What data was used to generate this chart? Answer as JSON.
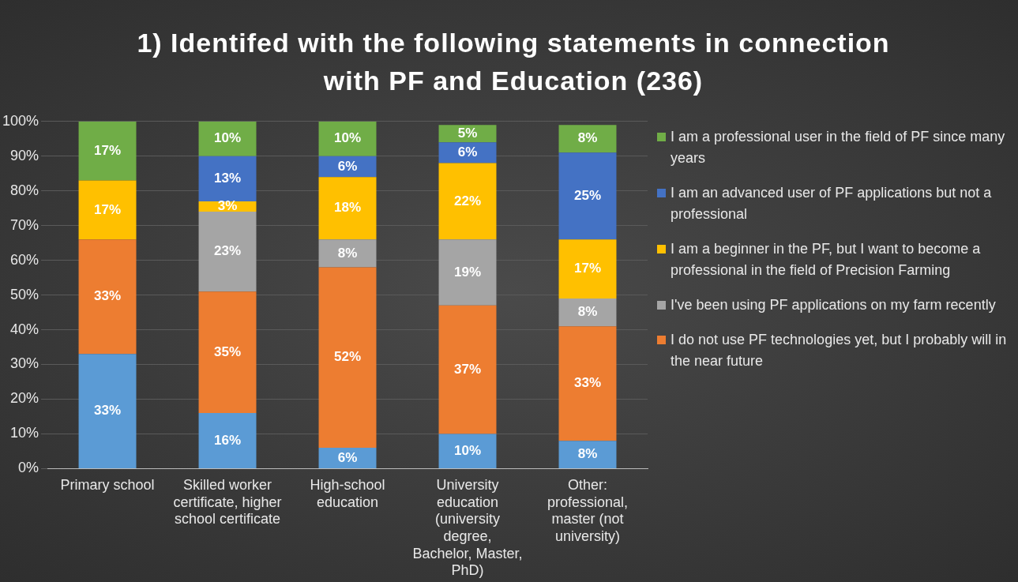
{
  "chart_data": {
    "type": "bar",
    "title": "1) Identifed with the following statements in connection with PF and Education (236)",
    "categories": [
      "Primary school",
      "Skilled worker certificate, higher school certificate",
      "High-school education",
      "University education (university degree, Bachelor, Master, PhD)",
      "Other: professional, master (not university)"
    ],
    "stacked": true,
    "ylim": [
      0,
      100
    ],
    "yticks": [
      {
        "value": 0,
        "label": "0%"
      },
      {
        "value": 10,
        "label": "10%"
      },
      {
        "value": 20,
        "label": "20%"
      },
      {
        "value": 30,
        "label": "30%"
      },
      {
        "value": 40,
        "label": "40%"
      },
      {
        "value": 50,
        "label": "50%"
      },
      {
        "value": 60,
        "label": "60%"
      },
      {
        "value": 70,
        "label": "70%"
      },
      {
        "value": 80,
        "label": "80%"
      },
      {
        "value": 90,
        "label": "90%"
      },
      {
        "value": 100,
        "label": "100%"
      }
    ],
    "grid": "y",
    "legend": "right",
    "series": [
      {
        "color": "#5b9bd5",
        "values": [
          33,
          16,
          6,
          10,
          8
        ],
        "value_labels": [
          "33%",
          "16%",
          "6%",
          "10%",
          "8%"
        ]
      },
      {
        "name": "I do not use PF technologies yet, but I probably will in the near future",
        "color": "#ed7d31",
        "values": [
          33,
          35,
          52,
          37,
          33
        ],
        "value_labels": [
          "33%",
          "35%",
          "52%",
          "37%",
          "33%"
        ]
      },
      {
        "name": "I've been using PF applications on my farm recently",
        "color": "#a5a5a5",
        "values": [
          null,
          23,
          8,
          19,
          8
        ],
        "value_labels": [
          null,
          "23%",
          "8%",
          "19%",
          "8%"
        ]
      },
      {
        "name": "I am a beginner in the PF, but I want to become a professional in the field of Precision Farming",
        "color": "#ffc000",
        "values": [
          17,
          3,
          18,
          22,
          17
        ],
        "value_labels": [
          "17%",
          "3%",
          "18%",
          "22%",
          "17%"
        ]
      },
      {
        "name": "I am an advanced user of PF applications but not a professional",
        "color": "#4472c4",
        "values": [
          null,
          13,
          6,
          6,
          25
        ],
        "value_labels": [
          null,
          "13%",
          "6%",
          "6%",
          "25%"
        ]
      },
      {
        "name": "I am a professional user in the field of PF since many years",
        "color": "#70ad47",
        "values": [
          17,
          10,
          10,
          5,
          8
        ],
        "value_labels": [
          "17%",
          "10%",
          "10%",
          "5%",
          "8%"
        ]
      }
    ]
  }
}
